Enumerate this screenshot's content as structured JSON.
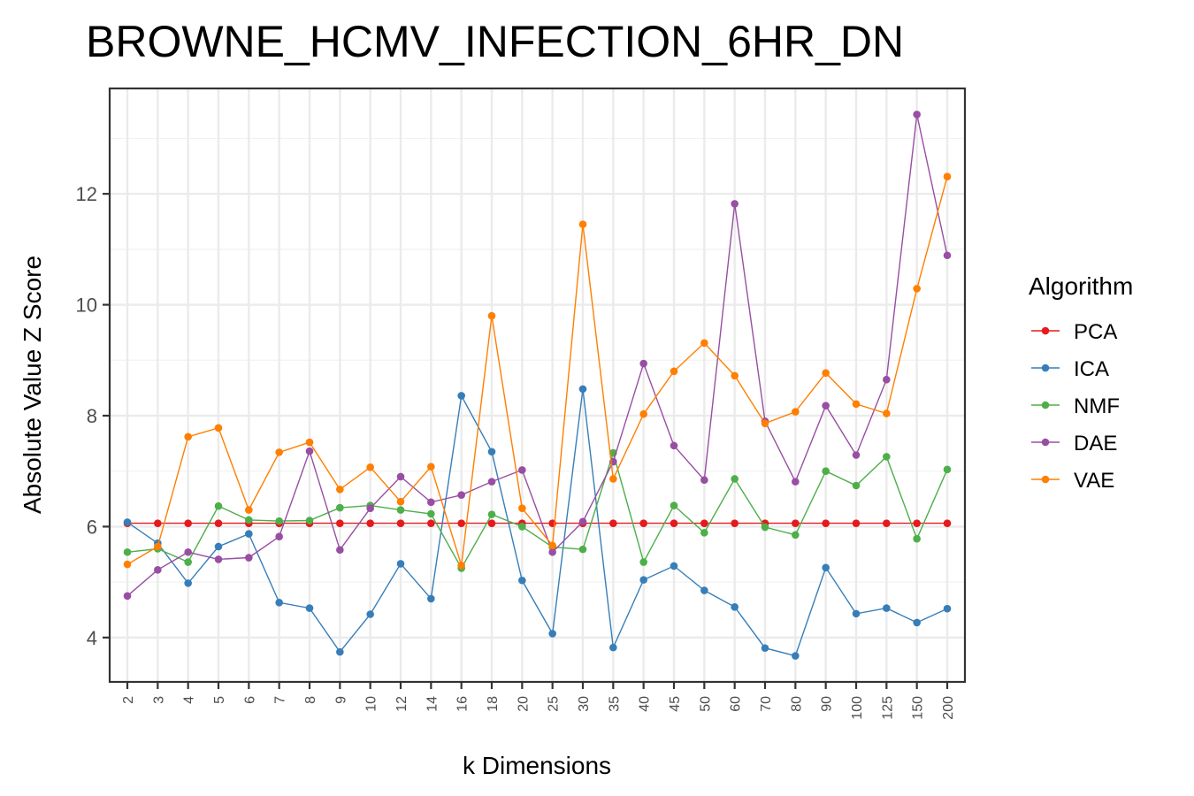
{
  "chart_data": {
    "type": "line",
    "title": "BROWNE_HCMV_INFECTION_6HR_DN",
    "xlabel": "k Dimensions",
    "ylabel": "Absolute Value Z Score",
    "categories": [
      "2",
      "3",
      "4",
      "5",
      "6",
      "7",
      "8",
      "9",
      "10",
      "12",
      "14",
      "16",
      "18",
      "20",
      "25",
      "30",
      "35",
      "40",
      "45",
      "50",
      "60",
      "70",
      "80",
      "90",
      "100",
      "125",
      "150",
      "200"
    ],
    "ylim": [
      3.2,
      13.9
    ],
    "yticks": [
      4,
      6,
      8,
      10,
      12
    ],
    "grid": true,
    "legend": {
      "title": "Algorithm",
      "position": "right"
    },
    "series": [
      {
        "name": "PCA",
        "color": "#e41a1c",
        "values": [
          6.06,
          6.06,
          6.06,
          6.06,
          6.06,
          6.06,
          6.06,
          6.06,
          6.06,
          6.06,
          6.06,
          6.06,
          6.06,
          6.06,
          6.06,
          6.06,
          6.06,
          6.06,
          6.06,
          6.06,
          6.06,
          6.06,
          6.06,
          6.06,
          6.06,
          6.06,
          6.06,
          6.06
        ]
      },
      {
        "name": "ICA",
        "color": "#377eb8",
        "values": [
          6.08,
          5.7,
          4.98,
          5.64,
          5.87,
          4.63,
          4.53,
          3.74,
          4.42,
          5.33,
          4.7,
          8.36,
          7.35,
          5.03,
          4.07,
          8.48,
          3.82,
          5.04,
          5.29,
          4.85,
          4.55,
          3.81,
          3.67,
          5.26,
          4.43,
          4.53,
          4.27,
          4.52
        ]
      },
      {
        "name": "NMF",
        "color": "#4daf4a",
        "values": [
          5.54,
          5.6,
          5.36,
          6.37,
          6.12,
          6.1,
          6.11,
          6.34,
          6.38,
          6.3,
          6.23,
          5.25,
          6.22,
          6.0,
          5.63,
          5.59,
          7.33,
          5.36,
          6.38,
          5.89,
          6.86,
          5.99,
          5.85,
          7.0,
          6.74,
          7.26,
          5.78,
          7.03
        ]
      },
      {
        "name": "DAE",
        "color": "#984ea3",
        "values": [
          4.75,
          5.22,
          5.54,
          5.41,
          5.44,
          5.82,
          7.36,
          5.58,
          6.33,
          6.9,
          6.44,
          6.57,
          6.81,
          7.02,
          5.54,
          6.09,
          7.17,
          8.94,
          7.46,
          6.84,
          11.82,
          7.9,
          6.81,
          8.18,
          7.29,
          8.65,
          13.43,
          10.89
        ]
      },
      {
        "name": "VAE",
        "color": "#ff7f00",
        "values": [
          5.32,
          5.64,
          7.62,
          7.78,
          6.3,
          7.34,
          7.52,
          6.67,
          7.07,
          6.45,
          7.08,
          5.3,
          9.8,
          6.33,
          5.66,
          11.45,
          6.86,
          8.03,
          8.8,
          9.31,
          8.72,
          7.86,
          8.07,
          8.77,
          8.21,
          8.04,
          10.29,
          12.31
        ]
      }
    ]
  }
}
